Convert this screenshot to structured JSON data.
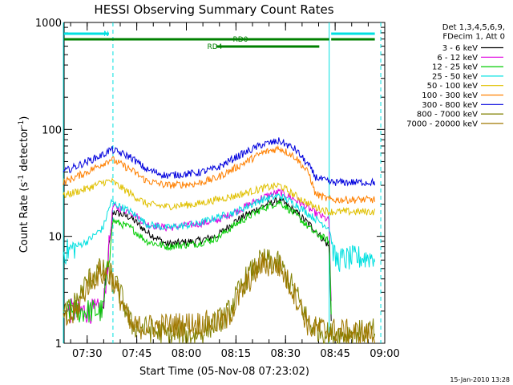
{
  "chart_data": {
    "type": "line",
    "title": "HESSI Observing Summary Count Rates",
    "ylabel_main": "Count Rate (s",
    "ylabel_sup1": "-1",
    "ylabel_mid": " detector",
    "ylabel_sup2": "-1",
    "ylabel_end": ")",
    "xlabel": "Start Time (05-Nov-08 07:23:02)",
    "date_stamp": "15-Jan-2010 13:28",
    "y_scale": "log",
    "ylim": [
      1,
      1000
    ],
    "xlim": [
      "07:23:02",
      "09:00:00"
    ],
    "y_ticks": [
      {
        "value": 1,
        "label": "1"
      },
      {
        "value": 10,
        "label": "10"
      },
      {
        "value": 100,
        "label": "100"
      },
      {
        "value": 1000,
        "label": "1000"
      }
    ],
    "x_ticks": [
      {
        "value": "07:30",
        "label": "07:30"
      },
      {
        "value": "07:45",
        "label": "07:45"
      },
      {
        "value": "08:00",
        "label": "08:00"
      },
      {
        "value": "08:15",
        "label": "08:15"
      },
      {
        "value": "08:30",
        "label": "08:30"
      },
      {
        "value": "08:45",
        "label": "08:45"
      },
      {
        "value": "09:00",
        "label": "09:00"
      }
    ],
    "legend_header": [
      "Det 1,3,4,5,6,9,",
      "FDecim 1, Att 0"
    ],
    "legend_position": "right",
    "series": [
      {
        "name": "3 - 6 keV",
        "color": "#000000",
        "points": [
          [
            7.58,
            2
          ],
          [
            7.63,
            17
          ],
          [
            7.72,
            15
          ],
          [
            7.8,
            11
          ],
          [
            7.9,
            8.5
          ],
          [
            8.05,
            9
          ],
          [
            8.15,
            10
          ],
          [
            8.25,
            14
          ],
          [
            8.38,
            19
          ],
          [
            8.47,
            22
          ],
          [
            8.55,
            17
          ],
          [
            8.64,
            12
          ],
          [
            8.72,
            8
          ],
          [
            8.73,
            2
          ]
        ]
      },
      {
        "name": "6 - 12 keV",
        "color": "#e000e0",
        "points": [
          [
            7.4,
            2
          ],
          [
            7.58,
            2
          ],
          [
            7.63,
            19
          ],
          [
            7.72,
            17
          ],
          [
            7.8,
            13
          ],
          [
            7.9,
            12
          ],
          [
            8.05,
            13
          ],
          [
            8.15,
            14
          ],
          [
            8.25,
            17
          ],
          [
            8.38,
            23
          ],
          [
            8.47,
            26
          ],
          [
            8.55,
            22
          ],
          [
            8.64,
            17
          ],
          [
            8.72,
            14
          ],
          [
            8.73,
            2
          ]
        ]
      },
      {
        "name": "12 - 25 keV",
        "color": "#00cc00",
        "points": [
          [
            7.4,
            2
          ],
          [
            7.58,
            2
          ],
          [
            7.63,
            14
          ],
          [
            7.72,
            12
          ],
          [
            7.8,
            9
          ],
          [
            7.9,
            8
          ],
          [
            8.05,
            8.5
          ],
          [
            8.15,
            9.5
          ],
          [
            8.25,
            13
          ],
          [
            8.38,
            18
          ],
          [
            8.47,
            21
          ],
          [
            8.55,
            16
          ],
          [
            8.64,
            11
          ],
          [
            8.72,
            9
          ],
          [
            8.73,
            2
          ]
        ]
      },
      {
        "name": "25 - 50 keV",
        "color": "#00e0e0",
        "points": [
          [
            7.38,
            7
          ],
          [
            7.5,
            9
          ],
          [
            7.58,
            12
          ],
          [
            7.62,
            21
          ],
          [
            7.72,
            17
          ],
          [
            7.8,
            13
          ],
          [
            7.9,
            12
          ],
          [
            8.05,
            13
          ],
          [
            8.15,
            15
          ],
          [
            8.25,
            17
          ],
          [
            8.38,
            22
          ],
          [
            8.47,
            24
          ],
          [
            8.55,
            20
          ],
          [
            8.64,
            15
          ],
          [
            8.72,
            12
          ],
          [
            8.75,
            6
          ],
          [
            8.95,
            6.5
          ]
        ]
      },
      {
        "name": "50 - 100 keV",
        "color": "#e0c000",
        "points": [
          [
            7.38,
            24
          ],
          [
            7.5,
            28
          ],
          [
            7.58,
            32
          ],
          [
            7.62,
            33
          ],
          [
            7.72,
            25
          ],
          [
            7.8,
            20
          ],
          [
            7.9,
            19
          ],
          [
            8.05,
            20
          ],
          [
            8.15,
            22
          ],
          [
            8.25,
            24
          ],
          [
            8.38,
            28
          ],
          [
            8.47,
            30
          ],
          [
            8.55,
            24
          ],
          [
            8.64,
            19
          ],
          [
            8.72,
            17
          ],
          [
            8.95,
            17
          ]
        ]
      },
      {
        "name": "100 - 300 keV",
        "color": "#ff8000",
        "points": [
          [
            7.38,
            32
          ],
          [
            7.5,
            40
          ],
          [
            7.58,
            48
          ],
          [
            7.62,
            53
          ],
          [
            7.72,
            42
          ],
          [
            7.8,
            33
          ],
          [
            7.9,
            30
          ],
          [
            8.05,
            31
          ],
          [
            8.15,
            35
          ],
          [
            8.25,
            44
          ],
          [
            8.38,
            60
          ],
          [
            8.47,
            67
          ],
          [
            8.55,
            55
          ],
          [
            8.62,
            38
          ],
          [
            8.65,
            25
          ],
          [
            8.72,
            22
          ],
          [
            8.95,
            22
          ]
        ]
      },
      {
        "name": "300 - 800 keV",
        "color": "#0000dd",
        "points": [
          [
            7.38,
            40
          ],
          [
            7.5,
            50
          ],
          [
            7.58,
            58
          ],
          [
            7.62,
            65
          ],
          [
            7.72,
            55
          ],
          [
            7.8,
            42
          ],
          [
            7.9,
            37
          ],
          [
            8.05,
            39
          ],
          [
            8.15,
            43
          ],
          [
            8.25,
            55
          ],
          [
            8.38,
            72
          ],
          [
            8.47,
            78
          ],
          [
            8.55,
            65
          ],
          [
            8.62,
            45
          ],
          [
            8.65,
            36
          ],
          [
            8.72,
            32
          ],
          [
            8.95,
            32
          ]
        ]
      },
      {
        "name": "800 - 7000 keV",
        "color": "#808000",
        "points": [
          [
            7.38,
            1.8
          ],
          [
            7.45,
            2.5
          ],
          [
            7.5,
            3.8
          ],
          [
            7.56,
            4.8
          ],
          [
            7.62,
            4.5
          ],
          [
            7.68,
            2.5
          ],
          [
            7.72,
            1.5
          ],
          [
            7.9,
            1.2
          ],
          [
            8.05,
            1.2
          ],
          [
            8.2,
            1.8
          ],
          [
            8.3,
            4
          ],
          [
            8.38,
            6
          ],
          [
            8.47,
            5.5
          ],
          [
            8.55,
            3
          ],
          [
            8.62,
            1.5
          ],
          [
            8.72,
            1.2
          ],
          [
            8.95,
            1.3
          ]
        ]
      },
      {
        "name": "7000 - 20000 keV",
        "color": "#a07800",
        "points": [
          [
            7.38,
            1.5
          ],
          [
            7.45,
            2
          ],
          [
            7.5,
            3.5
          ],
          [
            7.56,
            4.5
          ],
          [
            7.62,
            4.2
          ],
          [
            7.68,
            2.3
          ],
          [
            7.72,
            1.4
          ],
          [
            8.2,
            1.6
          ],
          [
            8.3,
            3.5
          ],
          [
            8.38,
            5.5
          ],
          [
            8.47,
            5.2
          ],
          [
            8.55,
            2.8
          ],
          [
            8.62,
            1.4
          ],
          [
            8.95,
            1.2
          ]
        ]
      }
    ],
    "legend_series_names": [
      "3 - 6 keV",
      "6 - 12 keV",
      "12 - 25 keV",
      "25 - 50 keV",
      "50 - 100 keV",
      "100 - 300 keV",
      "300 - 800 keV",
      "800 - 7000 keV",
      "7000 - 20000 keV"
    ],
    "state_bars": [
      {
        "label": "N",
        "color": "#00e0e0"
      },
      {
        "label": "RD0",
        "color": "#008000"
      },
      {
        "label": "RD4",
        "color": "#008000"
      }
    ]
  }
}
